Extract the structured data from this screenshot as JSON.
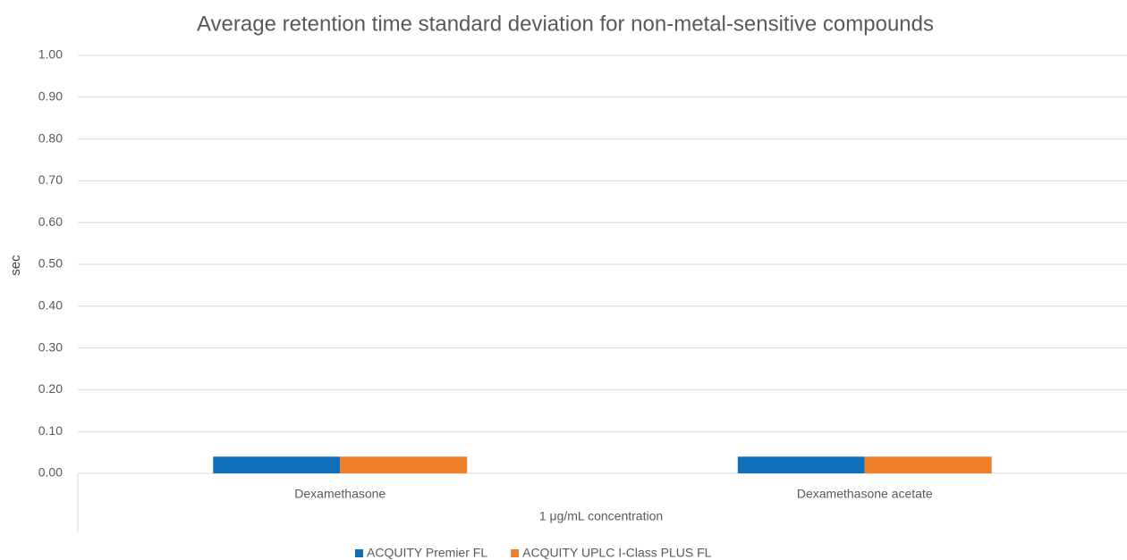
{
  "chart_data": {
    "type": "bar",
    "title": "Average retention time standard deviation for non-metal-sensitive compounds",
    "y_label": "sec",
    "x_label": "1 μg/mL concentration",
    "categories": [
      "Dexamethasone",
      "Dexamethasone acetate"
    ],
    "series": [
      {
        "name": "ACQUITY Premier FL",
        "color": "#0f6fba",
        "values": [
          0.04,
          0.04
        ]
      },
      {
        "name": "ACQUITY UPLC I-Class PLUS FL",
        "color": "#f07f2a",
        "values": [
          0.04,
          0.04
        ]
      }
    ],
    "ylim": [
      0,
      1
    ],
    "yticks": [
      {
        "value": 0,
        "label": "0.00"
      },
      {
        "value": 0.1,
        "label": "0.10"
      },
      {
        "value": 0.2,
        "label": "0.20"
      },
      {
        "value": 0.3,
        "label": "0.30"
      },
      {
        "value": 0.4,
        "label": "0.40"
      },
      {
        "value": 0.5,
        "label": "0.50"
      },
      {
        "value": 0.6,
        "label": "0.60"
      },
      {
        "value": 0.7,
        "label": "0.70"
      },
      {
        "value": 0.8,
        "label": "0.80"
      },
      {
        "value": 0.9,
        "label": "0.90"
      },
      {
        "value": 1,
        "label": "1.00"
      }
    ],
    "grid": true,
    "legend": "bottom"
  }
}
